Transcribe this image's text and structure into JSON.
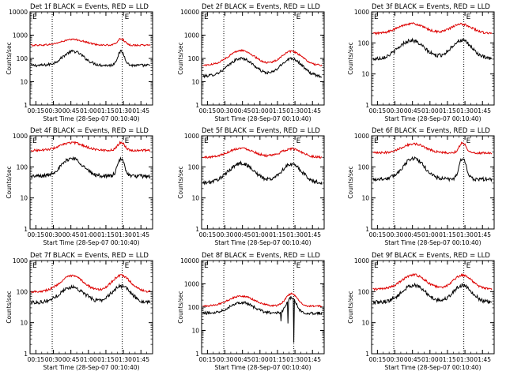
{
  "chart_data": [
    {
      "type": "line",
      "title": "Det 1f BLACK = Events, RED = LLD",
      "xlabel": "Start Time (28-Sep-07 00:10:40)",
      "ylabel": "Counts/sec",
      "xlim": [
        10,
        115
      ],
      "ylim": [
        1,
        10000
      ],
      "yscale": "log",
      "xticks": [
        "00:15",
        "00:30",
        "00:45",
        "01:00",
        "01:15",
        "01:30",
        "01:45"
      ],
      "xtick_values": [
        15,
        30,
        45,
        60,
        75,
        90,
        105
      ],
      "yticks": [
        "1",
        "10",
        "100",
        "1000",
        "10000"
      ],
      "vlines": [
        29,
        89
      ],
      "annotations": [
        {
          "text": "E",
          "x": 12
        },
        {
          "text": "E",
          "x": 91
        }
      ],
      "series": [
        {
          "name": "Events",
          "color": "#000000",
          "shape": "orbit",
          "base": 50,
          "peaks": [
            {
              "c": 47,
              "v": 200,
              "w": 9
            },
            {
              "c": 88,
              "v": 200,
              "w": 3
            }
          ]
        },
        {
          "name": "LLD",
          "color": "#dd0000",
          "shape": "orbit",
          "base": 370,
          "peaks": [
            {
              "c": 47,
              "v": 650,
              "w": 10
            },
            {
              "c": 88,
              "v": 700,
              "w": 3
            }
          ]
        }
      ]
    },
    {
      "type": "line",
      "title": "Det 2f BLACK = Events, RED = LLD",
      "xlabel": "Start Time (28-Sep-07 00:10:40)",
      "ylabel": "Counts/sec",
      "xlim": [
        10,
        115
      ],
      "ylim": [
        1,
        10000
      ],
      "yscale": "log",
      "xticks": [
        "00:15",
        "00:30",
        "00:45",
        "01:00",
        "01:15",
        "01:30",
        "01:45"
      ],
      "xtick_values": [
        15,
        30,
        45,
        60,
        75,
        90,
        105
      ],
      "yticks": [
        "1",
        "10",
        "100",
        "1000",
        "10000"
      ],
      "vlines": [
        29,
        89
      ],
      "annotations": [
        {
          "text": "E",
          "x": 12
        },
        {
          "text": "E",
          "x": 91
        }
      ],
      "series": [
        {
          "name": "Events",
          "color": "#000000",
          "shape": "orbit",
          "base": 17,
          "peaks": [
            {
              "c": 44,
              "v": 100,
              "w": 11
            },
            {
              "c": 87,
              "v": 100,
              "w": 9
            }
          ]
        },
        {
          "name": "LLD",
          "color": "#dd0000",
          "shape": "orbit",
          "base": 50,
          "peaks": [
            {
              "c": 44,
              "v": 220,
              "w": 11
            },
            {
              "c": 87,
              "v": 200,
              "w": 9
            }
          ]
        }
      ]
    },
    {
      "type": "line",
      "title": "Det 3f BLACK = Events, RED = LLD",
      "xlabel": "Start Time (28-Sep-07 00:10:40)",
      "ylabel": "Counts/sec",
      "xlim": [
        10,
        115
      ],
      "ylim": [
        1,
        1000
      ],
      "yscale": "log",
      "xticks": [
        "00:15",
        "00:30",
        "00:45",
        "01:00",
        "01:15",
        "01:30",
        "01:45"
      ],
      "xtick_values": [
        15,
        30,
        45,
        60,
        75,
        90,
        105
      ],
      "yticks": [
        "1",
        "10",
        "100",
        "1000"
      ],
      "vlines": [
        29,
        89
      ],
      "annotations": [
        {
          "text": "E",
          "x": 12
        },
        {
          "text": "E",
          "x": 91
        }
      ],
      "series": [
        {
          "name": "Events",
          "color": "#000000",
          "shape": "orbit",
          "base": 30,
          "peaks": [
            {
              "c": 44,
              "v": 120,
              "w": 11
            },
            {
              "c": 87,
              "v": 120,
              "w": 9
            }
          ]
        },
        {
          "name": "LLD",
          "color": "#dd0000",
          "shape": "orbit",
          "base": 200,
          "peaks": [
            {
              "c": 44,
              "v": 420,
              "w": 11
            },
            {
              "c": 87,
              "v": 400,
              "w": 9
            }
          ]
        }
      ]
    },
    {
      "type": "line",
      "title": "Det 4f BLACK = Events, RED = LLD",
      "xlabel": "Start Time (28-Sep-07 00:10:40)",
      "ylabel": "Counts/sec",
      "xlim": [
        10,
        115
      ],
      "ylim": [
        1,
        1000
      ],
      "yscale": "log",
      "xticks": [
        "00:15",
        "00:30",
        "00:45",
        "01:00",
        "01:15",
        "01:30",
        "01:45"
      ],
      "xtick_values": [
        15,
        30,
        45,
        60,
        75,
        90,
        105
      ],
      "yticks": [
        "1",
        "10",
        "100",
        "1000"
      ],
      "vlines": [
        29,
        89
      ],
      "annotations": [
        {
          "text": "E",
          "x": 12
        },
        {
          "text": "E",
          "x": 91
        }
      ],
      "series": [
        {
          "name": "Events",
          "color": "#000000",
          "shape": "orbit",
          "base": 50,
          "peaks": [
            {
              "c": 46,
              "v": 190,
              "w": 9
            },
            {
              "c": 88,
              "v": 180,
              "w": 3
            }
          ]
        },
        {
          "name": "LLD",
          "color": "#dd0000",
          "shape": "orbit",
          "base": 340,
          "peaks": [
            {
              "c": 46,
              "v": 600,
              "w": 10
            },
            {
              "c": 88,
              "v": 620,
              "w": 3
            }
          ]
        }
      ]
    },
    {
      "type": "line",
      "title": "Det 5f BLACK = Events, RED = LLD",
      "xlabel": "Start Time (28-Sep-07 00:10:40)",
      "ylabel": "Counts/sec",
      "xlim": [
        10,
        115
      ],
      "ylim": [
        1,
        1000
      ],
      "yscale": "log",
      "xticks": [
        "00:15",
        "00:30",
        "00:45",
        "01:00",
        "01:15",
        "01:30",
        "01:45"
      ],
      "xtick_values": [
        15,
        30,
        45,
        60,
        75,
        90,
        105
      ],
      "yticks": [
        "1",
        "10",
        "100",
        "1000"
      ],
      "vlines": [
        29,
        89
      ],
      "annotations": [
        {
          "text": "E",
          "x": 12
        },
        {
          "text": "E",
          "x": 91
        }
      ],
      "series": [
        {
          "name": "Events",
          "color": "#000000",
          "shape": "orbit",
          "base": 30,
          "peaks": [
            {
              "c": 44,
              "v": 130,
              "w": 11
            },
            {
              "c": 87,
              "v": 120,
              "w": 9
            }
          ]
        },
        {
          "name": "LLD",
          "color": "#dd0000",
          "shape": "orbit",
          "base": 200,
          "peaks": [
            {
              "c": 44,
              "v": 400,
              "w": 11
            },
            {
              "c": 87,
              "v": 380,
              "w": 9
            }
          ]
        }
      ]
    },
    {
      "type": "line",
      "title": "Det 6f BLACK = Events, RED = LLD",
      "xlabel": "Start Time (28-Sep-07 00:10:40)",
      "ylabel": "Counts/sec",
      "xlim": [
        10,
        115
      ],
      "ylim": [
        1,
        1000
      ],
      "yscale": "log",
      "xticks": [
        "00:15",
        "00:30",
        "00:45",
        "01:00",
        "01:15",
        "01:30",
        "01:45"
      ],
      "xtick_values": [
        15,
        30,
        45,
        60,
        75,
        90,
        105
      ],
      "yticks": [
        "1",
        "10",
        "100",
        "1000"
      ],
      "vlines": [
        29,
        89
      ],
      "annotations": [
        {
          "text": "E",
          "x": 12
        },
        {
          "text": "E",
          "x": 91
        }
      ],
      "series": [
        {
          "name": "Events",
          "color": "#000000",
          "shape": "orbit",
          "base": 40,
          "peaks": [
            {
              "c": 46,
              "v": 190,
              "w": 9
            },
            {
              "c": 88,
              "v": 190,
              "w": 3
            }
          ]
        },
        {
          "name": "LLD",
          "color": "#dd0000",
          "shape": "orbit",
          "base": 280,
          "peaks": [
            {
              "c": 46,
              "v": 550,
              "w": 10
            },
            {
              "c": 88,
              "v": 600,
              "w": 3
            }
          ]
        }
      ]
    },
    {
      "type": "line",
      "title": "Det 7f BLACK = Events, RED = LLD",
      "xlabel": "Start Time (28-Sep-07 00:10:40)",
      "ylabel": "Counts/sec",
      "xlim": [
        10,
        115
      ],
      "ylim": [
        1,
        1000
      ],
      "yscale": "log",
      "xticks": [
        "00:15",
        "00:30",
        "00:45",
        "01:00",
        "01:15",
        "01:30",
        "01:45"
      ],
      "xtick_values": [
        15,
        30,
        45,
        60,
        75,
        90,
        105
      ],
      "yticks": [
        "1",
        "10",
        "100",
        "1000"
      ],
      "vlines": [
        29,
        89
      ],
      "annotations": [
        {
          "text": "E",
          "x": 12
        },
        {
          "text": "E",
          "x": 91
        }
      ],
      "series": [
        {
          "name": "Events",
          "color": "#000000",
          "shape": "orbit",
          "base": 45,
          "peaks": [
            {
              "c": 46,
              "v": 140,
              "w": 10
            },
            {
              "c": 88,
              "v": 150,
              "w": 8
            }
          ]
        },
        {
          "name": "LLD",
          "color": "#dd0000",
          "shape": "orbit",
          "base": 100,
          "peaks": [
            {
              "c": 46,
              "v": 320,
              "w": 10
            },
            {
              "c": 88,
              "v": 330,
              "w": 8
            }
          ]
        }
      ]
    },
    {
      "type": "line",
      "title": "Det 8f BLACK = Events, RED = LLD",
      "xlabel": "Start Time (28-Sep-07 00:10:40)",
      "ylabel": "Counts/sec",
      "xlim": [
        10,
        115
      ],
      "ylim": [
        1,
        10000
      ],
      "yscale": "log",
      "xticks": [
        "00:15",
        "00:30",
        "00:45",
        "01:00",
        "01:15",
        "01:30",
        "01:45"
      ],
      "xtick_values": [
        15,
        30,
        45,
        60,
        75,
        90,
        105
      ],
      "yticks": [
        "1",
        "10",
        "100",
        "1000",
        "10000"
      ],
      "vlines": [
        29,
        89
      ],
      "annotations": [
        {
          "text": "E",
          "x": 12
        },
        {
          "text": "E",
          "x": 91
        }
      ],
      "series": [
        {
          "name": "Events",
          "color": "#000000",
          "shape": "orbit",
          "base": 55,
          "peaks": [
            {
              "c": 44,
              "v": 160,
              "w": 10
            },
            {
              "c": 87,
              "v": 260,
              "w": 4
            }
          ],
          "dips": [
            {
              "x": 78,
              "v": 25
            },
            {
              "x": 84,
              "v": 20
            },
            {
              "x": 89,
              "v": 3
            }
          ]
        },
        {
          "name": "LLD",
          "color": "#dd0000",
          "shape": "orbit",
          "base": 110,
          "peaks": [
            {
              "c": 44,
              "v": 300,
              "w": 11
            },
            {
              "c": 87,
              "v": 380,
              "w": 5
            }
          ]
        }
      ]
    },
    {
      "type": "line",
      "title": "Det 9f BLACK = Events, RED = LLD",
      "xlabel": "Start Time (28-Sep-07 00:10:40)",
      "ylabel": "Counts/sec",
      "xlim": [
        10,
        115
      ],
      "ylim": [
        1,
        1000
      ],
      "yscale": "log",
      "xticks": [
        "00:15",
        "00:30",
        "00:45",
        "01:00",
        "01:15",
        "01:30",
        "01:45"
      ],
      "xtick_values": [
        15,
        30,
        45,
        60,
        75,
        90,
        105
      ],
      "yticks": [
        "1",
        "10",
        "100",
        "1000"
      ],
      "vlines": [
        29,
        89
      ],
      "annotations": [
        {
          "text": "E",
          "x": 12
        },
        {
          "text": "E",
          "x": 91
        }
      ],
      "series": [
        {
          "name": "Events",
          "color": "#000000",
          "shape": "orbit",
          "base": 45,
          "peaks": [
            {
              "c": 46,
              "v": 160,
              "w": 10
            },
            {
              "c": 88,
              "v": 160,
              "w": 8
            }
          ]
        },
        {
          "name": "LLD",
          "color": "#dd0000",
          "shape": "orbit",
          "base": 120,
          "peaks": [
            {
              "c": 46,
              "v": 350,
              "w": 10
            },
            {
              "c": 88,
              "v": 340,
              "w": 8
            }
          ]
        }
      ]
    }
  ]
}
